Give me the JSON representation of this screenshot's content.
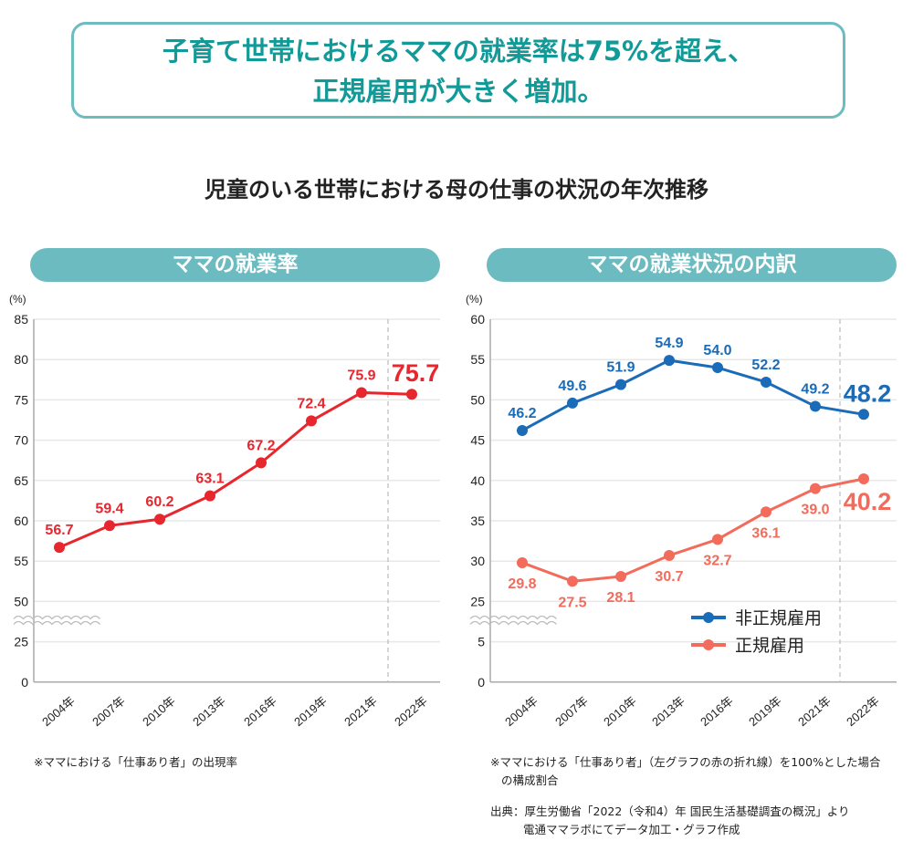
{
  "headline": {
    "line1": "子育て世帯におけるママの就業率は75%を超え、",
    "line2": "正規雇用が大きく増加。"
  },
  "title": "児童のいる世帯における母の仕事の状況の年次推移",
  "panels": {
    "left_label": "ママの就業率",
    "right_label": "ママの就業状況の内訳"
  },
  "notes": {
    "left": "※ママにおける「仕事あり者」の出現率",
    "right_1": "※ママにおける「仕事あり者」（左グラフの赤の折れ線）を100%とした場合",
    "right_2": "の構成割合",
    "source_1": "出典：厚生労働省「2022（令和4）年 国民生活基礎調査の概況」より",
    "source_2": "電通ママラボにてデータ加工・グラフ作成"
  },
  "chart_data": [
    {
      "type": "line",
      "title": "ママの就業率",
      "ylabel": "(%)",
      "categories": [
        "2004年",
        "2007年",
        "2010年",
        "2013年",
        "2016年",
        "2019年",
        "2021年",
        "2022年"
      ],
      "yticks": [
        "0",
        "25",
        "50",
        "55",
        "60",
        "65",
        "70",
        "75",
        "80",
        "85"
      ],
      "axis_break": "between 25 and 50",
      "grid": true,
      "series": [
        {
          "values": [
            56.7,
            59.4,
            60.2,
            63.1,
            67.2,
            72.4,
            75.9,
            75.7
          ],
          "color": "#e8262d"
        }
      ]
    },
    {
      "type": "line",
      "title": "ママの就業状況の内訳",
      "ylabel": "(%)",
      "categories": [
        "2004年",
        "2007年",
        "2010年",
        "2013年",
        "2016年",
        "2019年",
        "2021年",
        "2022年"
      ],
      "yticks": [
        "0",
        "5",
        "25",
        "30",
        "35",
        "40",
        "45",
        "50",
        "55",
        "60"
      ],
      "axis_break": "between 5 and 25",
      "grid": true,
      "legend_position": "bottom-right",
      "series": [
        {
          "name": "非正規雇用",
          "values": [
            46.2,
            49.6,
            51.9,
            54.9,
            54.0,
            52.2,
            49.2,
            48.2
          ],
          "color": "#1a6bb8"
        },
        {
          "name": "正規雇用",
          "values": [
            29.8,
            27.5,
            28.1,
            30.7,
            32.7,
            36.1,
            39.0,
            40.2
          ],
          "color": "#f26b5b"
        }
      ]
    }
  ]
}
